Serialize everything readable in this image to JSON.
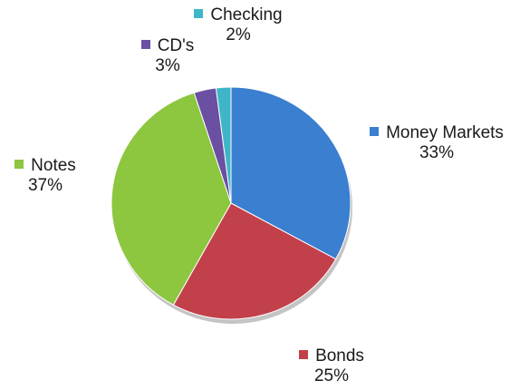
{
  "chart_data": {
    "type": "pie",
    "title": "",
    "slices": [
      {
        "label": "Money Markets",
        "value": 33,
        "display": "33%",
        "color": "#3a7fd0"
      },
      {
        "label": "Bonds",
        "value": 25,
        "display": "25%",
        "color": "#c2404a"
      },
      {
        "label": "Notes",
        "value": 37,
        "display": "37%",
        "color": "#8dc63f"
      },
      {
        "label": "CD's",
        "value": 3,
        "display": "3%",
        "color": "#6a4fa3"
      },
      {
        "label": "Checking",
        "value": 2,
        "display": "2%",
        "color": "#3fb6c8"
      }
    ],
    "start_angle_deg": 0,
    "direction": "clockwise",
    "legend": "none",
    "labels": "outside-with-swatch"
  }
}
